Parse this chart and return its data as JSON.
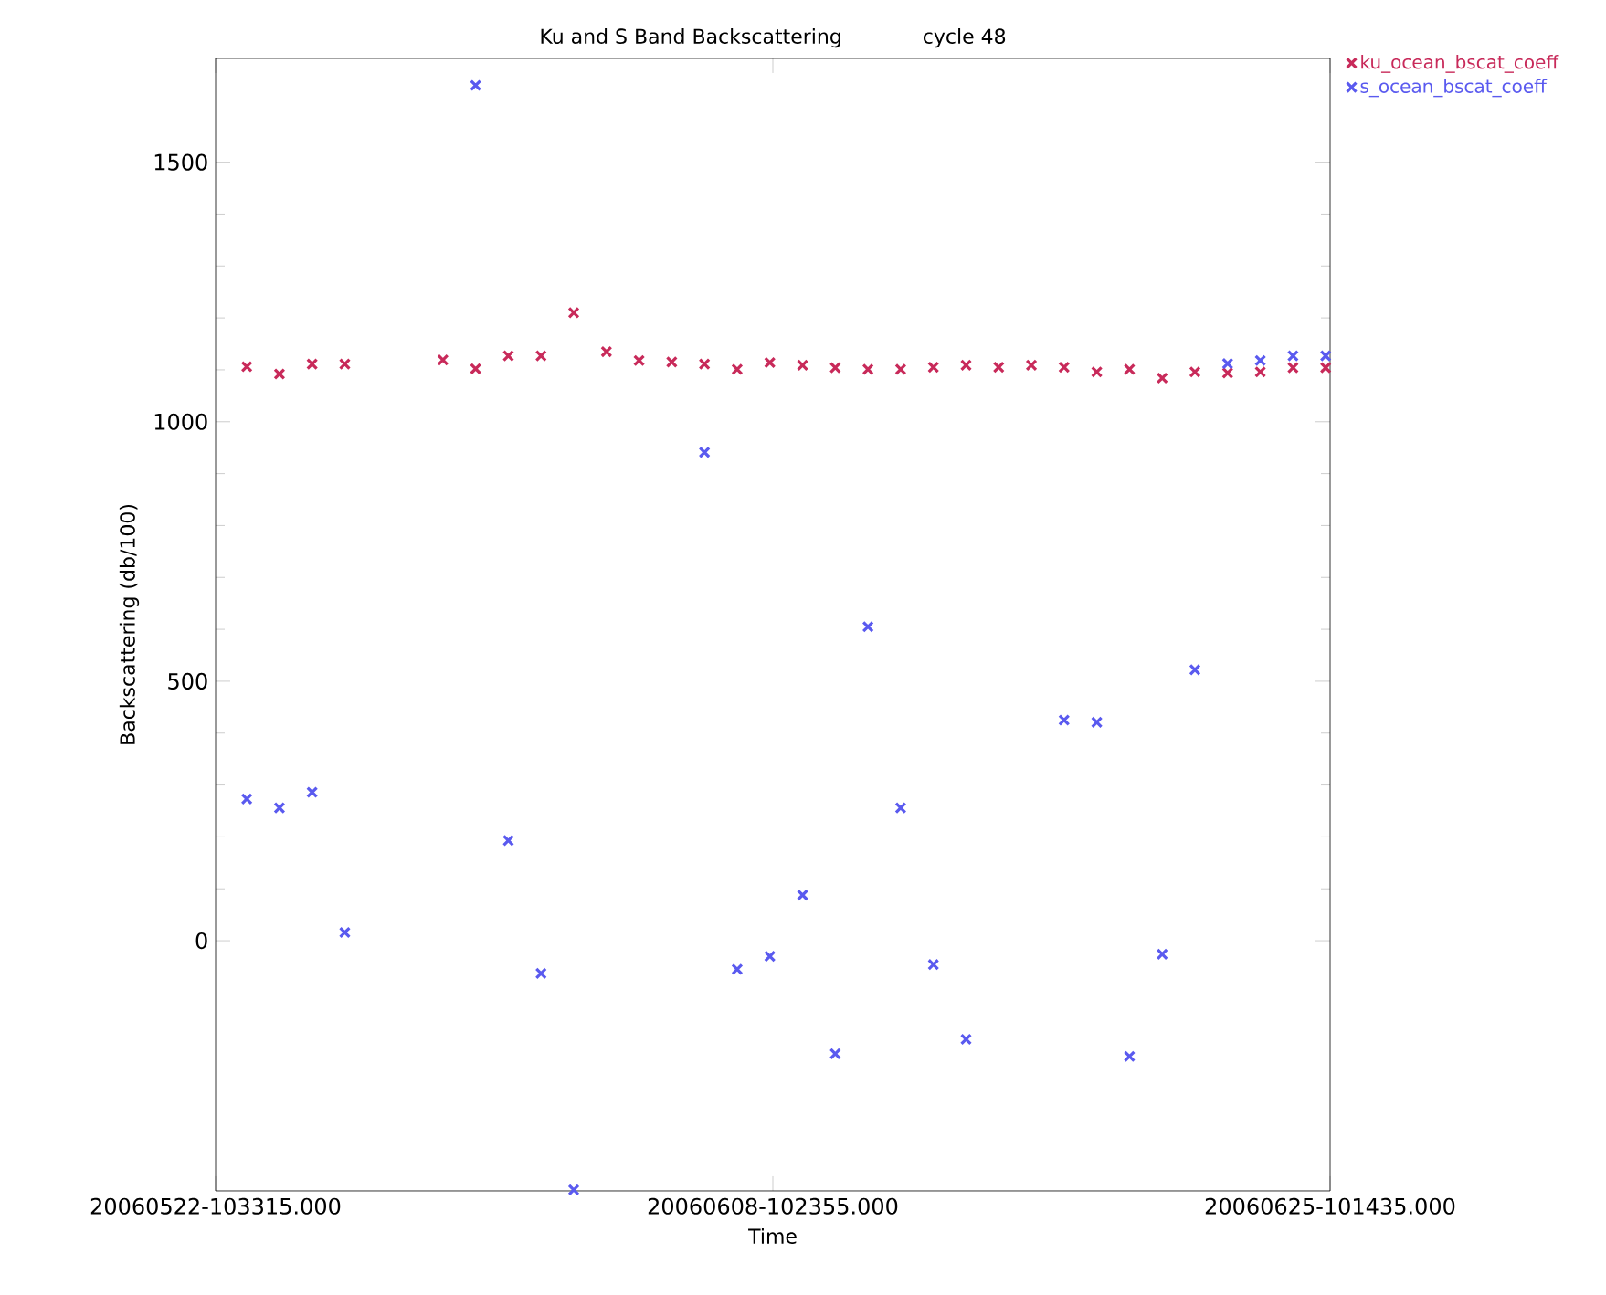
{
  "chart_data": {
    "type": "scatter",
    "title": "Ku and S Band Backscattering",
    "subtitle": "cycle 48",
    "xlabel": "Time",
    "ylabel": "Backscattering (db/100)",
    "x": [
      "2006-05-23T09:21",
      "2006-05-24T09:17",
      "2006-05-25T09:12",
      "2006-05-26T09:08",
      "2006-05-29T08:55",
      "2006-05-30T08:51",
      "2006-05-31T08:47",
      "2006-06-01T08:42",
      "2006-06-02T08:38",
      "2006-06-03T08:34",
      "2006-06-04T08:29",
      "2006-06-05T08:25",
      "2006-06-06T08:21",
      "2006-06-07T08:16",
      "2006-06-08T08:12",
      "2006-06-09T08:08",
      "2006-06-10T08:04",
      "2006-06-11T07:59",
      "2006-06-12T07:55",
      "2006-06-13T07:51",
      "2006-06-14T07:46",
      "2006-06-15T07:42",
      "2006-06-16T07:38",
      "2006-06-17T07:33",
      "2006-06-18T07:29",
      "2006-06-19T07:25",
      "2006-06-20T07:21",
      "2006-06-21T07:16",
      "2006-06-22T07:12",
      "2006-06-23T07:08",
      "2006-06-24T07:03",
      "2006-06-25T06:59"
    ],
    "series": [
      {
        "name": "ku_ocean_bscat_coeff",
        "color": "#c82a5a",
        "values": [
          1106,
          1092,
          1111,
          1111,
          1119,
          1102,
          1127,
          1127,
          1210,
          1135,
          1118,
          1115,
          1111,
          1101,
          1114,
          1109,
          1104,
          1101,
          1101,
          1105,
          1109,
          1105,
          1109,
          1105,
          1096,
          1101,
          1084,
          1096,
          1094,
          1096,
          1104,
          1104
        ]
      },
      {
        "name": "s_ocean_bscat_coeff",
        "color": "#5a5aef",
        "values": [
          273,
          256,
          286,
          16,
          null,
          1648,
          193,
          -63,
          -480,
          null,
          null,
          null,
          941,
          -55,
          -30,
          88,
          -218,
          605,
          256,
          -46,
          -190,
          null,
          null,
          425,
          421,
          -223,
          -26,
          522,
          1112,
          1118,
          1127,
          1127
        ]
      }
    ],
    "xlim": [
      "2006-05-22T10:33",
      "2006-06-25T10:14"
    ],
    "ylim": [
      -482,
      1700
    ],
    "xticks": [
      {
        "value": "2006-05-22T10:33",
        "label": "20060522-103315.000"
      },
      {
        "value": "2006-06-08T10:23",
        "label": "20060608-102355.000"
      },
      {
        "value": "2006-06-25T10:14",
        "label": "20060625-101435.000"
      }
    ],
    "yticks": [
      0,
      500,
      1000,
      1500
    ],
    "marker": "cross",
    "legend": "top right",
    "grid": false
  }
}
